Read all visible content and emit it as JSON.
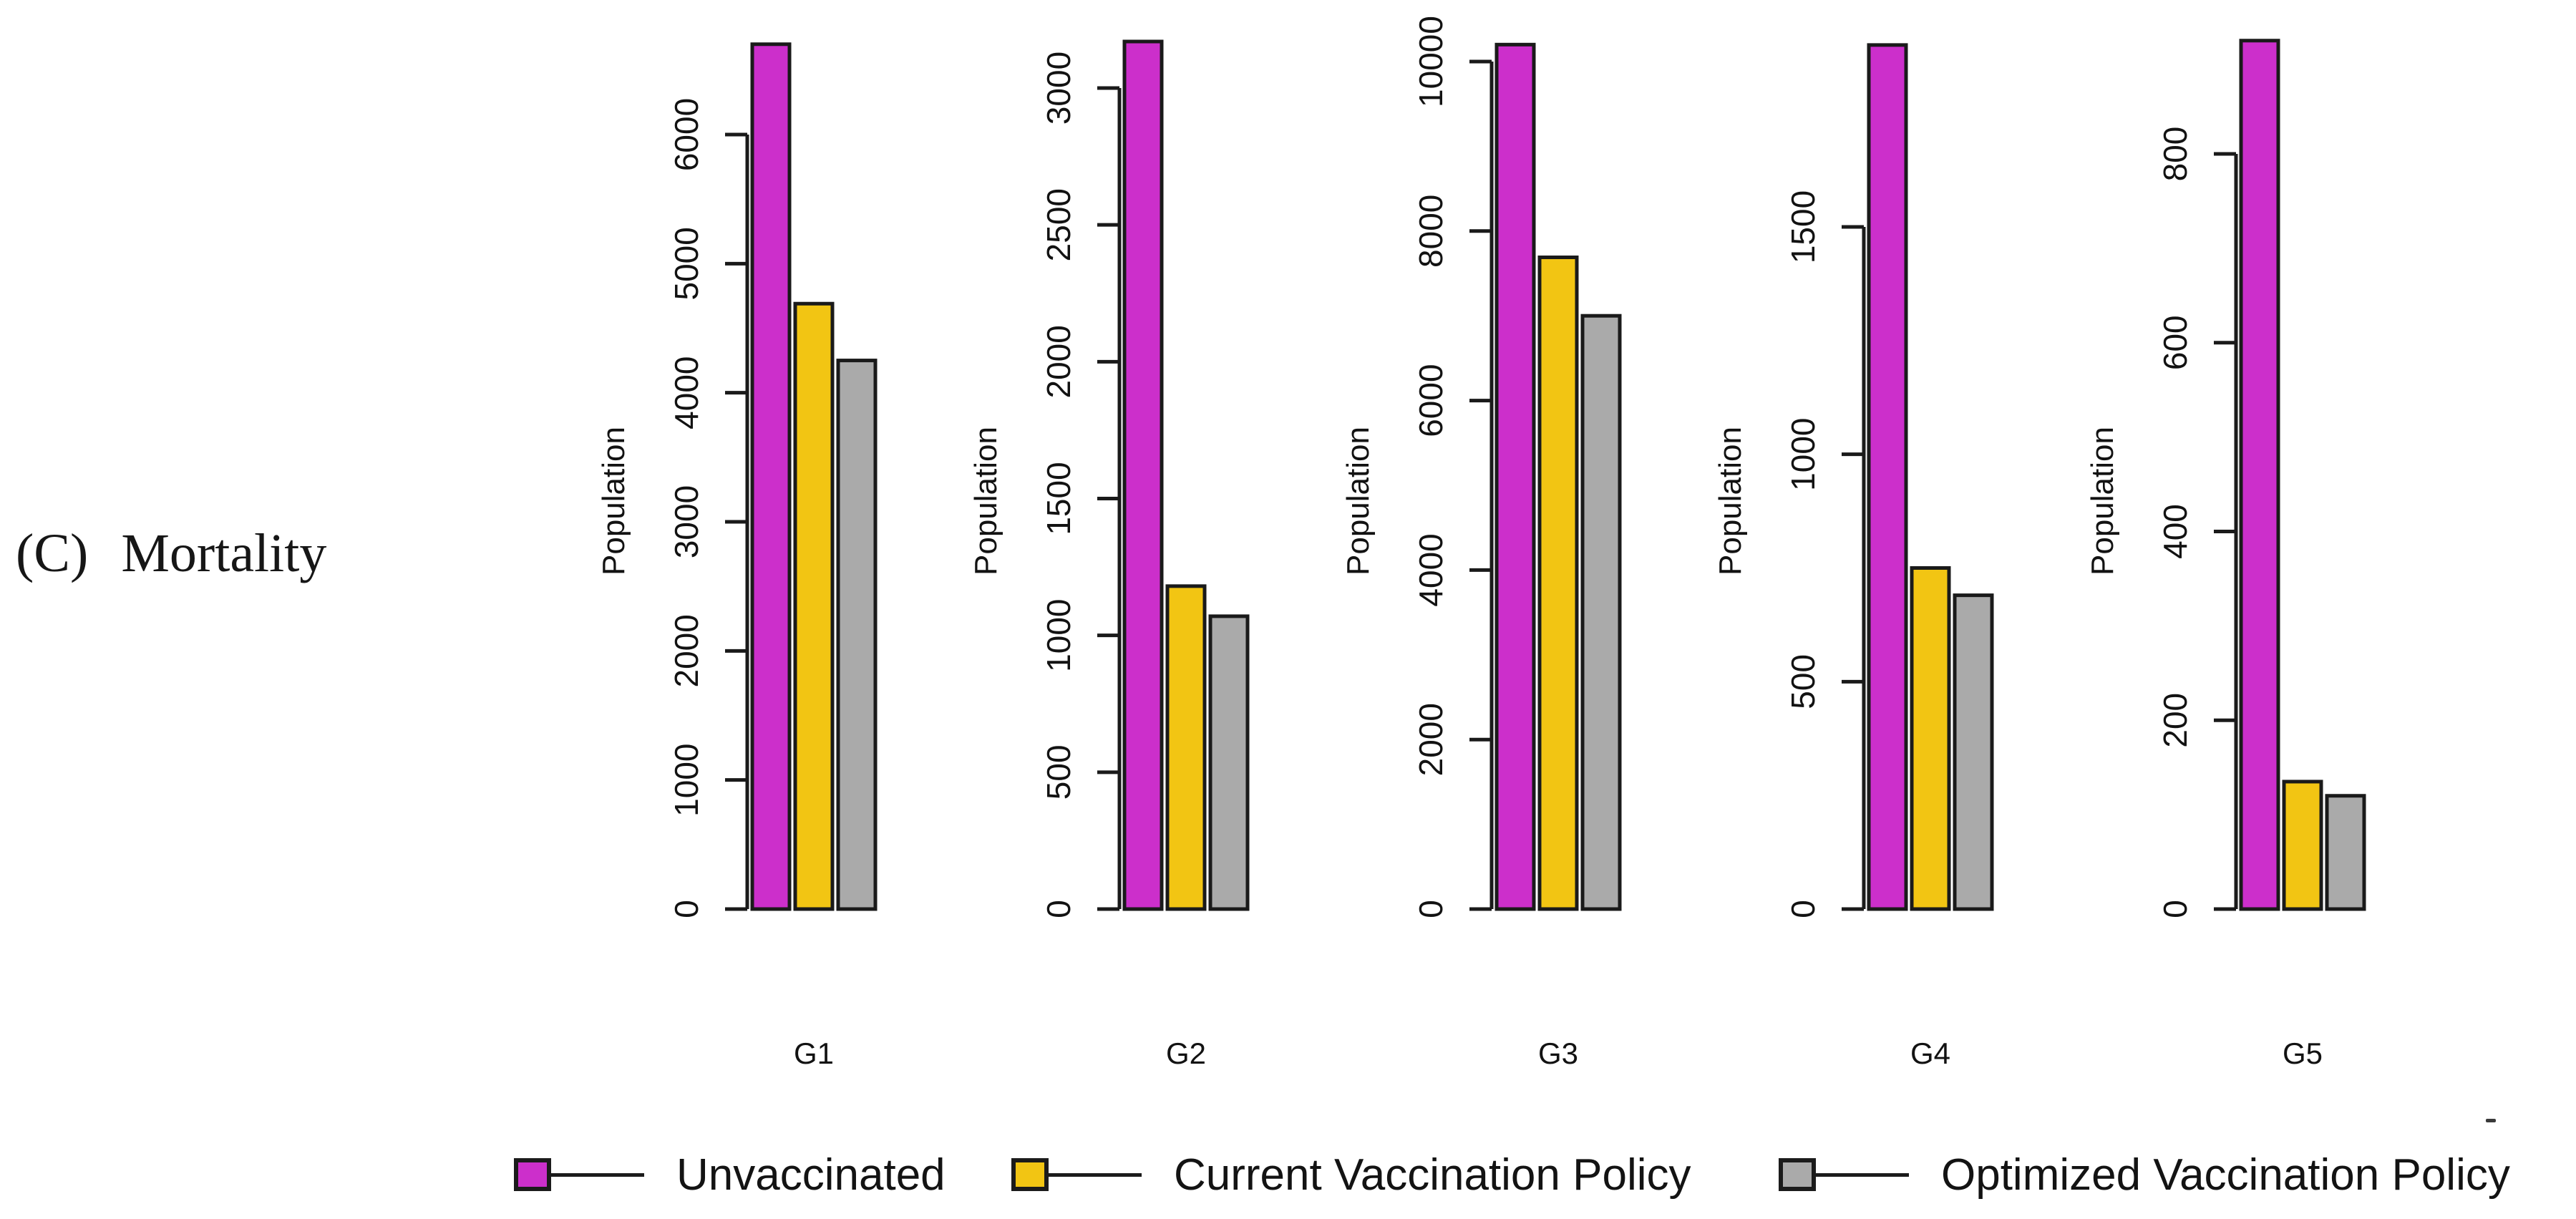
{
  "figure_label": {
    "prefix": "(C)",
    "title": "Mortality"
  },
  "legend": {
    "items": [
      {
        "label": "Unvaccinated",
        "color": "#CC2FCB"
      },
      {
        "label": "Current Vaccination Policy",
        "color": "#F2C513"
      },
      {
        "label": "Optimized Vaccination Policy",
        "color": "#AAAAAA"
      }
    ]
  },
  "bar_border_color": "#1A1A1A",
  "chart_data": {
    "type": "bar",
    "categories": [
      "G1",
      "G2",
      "G3",
      "G4",
      "G5"
    ],
    "ylabel": "Population",
    "series": [
      {
        "name": "Unvaccinated",
        "color": "#CC2FCB",
        "values": [
          6700,
          3170,
          10200,
          1900,
          920
        ]
      },
      {
        "name": "Current Vaccination Policy",
        "color": "#F2C513",
        "values": [
          4690,
          1180,
          7690,
          750,
          135
        ]
      },
      {
        "name": "Optimized Vaccination Policy",
        "color": "#AAAAAA",
        "values": [
          4250,
          1070,
          7000,
          690,
          120
        ]
      }
    ],
    "panels": [
      {
        "category": "G1",
        "ylabel": "Population",
        "ylim": [
          0,
          6000
        ],
        "ytick_step": 1000
      },
      {
        "category": "G2",
        "ylabel": "Population",
        "ylim": [
          0,
          3000
        ],
        "ytick_step": 500
      },
      {
        "category": "G3",
        "ylabel": "Population",
        "ylim": [
          0,
          10000
        ],
        "ytick_step": 2000
      },
      {
        "category": "G4",
        "ylabel": "Population",
        "ylim": [
          0,
          1500
        ],
        "ytick_step": 500
      },
      {
        "category": "G5",
        "ylabel": "Population",
        "ylim": [
          0,
          800
        ],
        "ytick_step": 200
      }
    ],
    "grid": false,
    "legend_position": "bottom",
    "note": "Unvaccinated bars exceed each panel's axis maximum and are clipped near the plot top"
  }
}
